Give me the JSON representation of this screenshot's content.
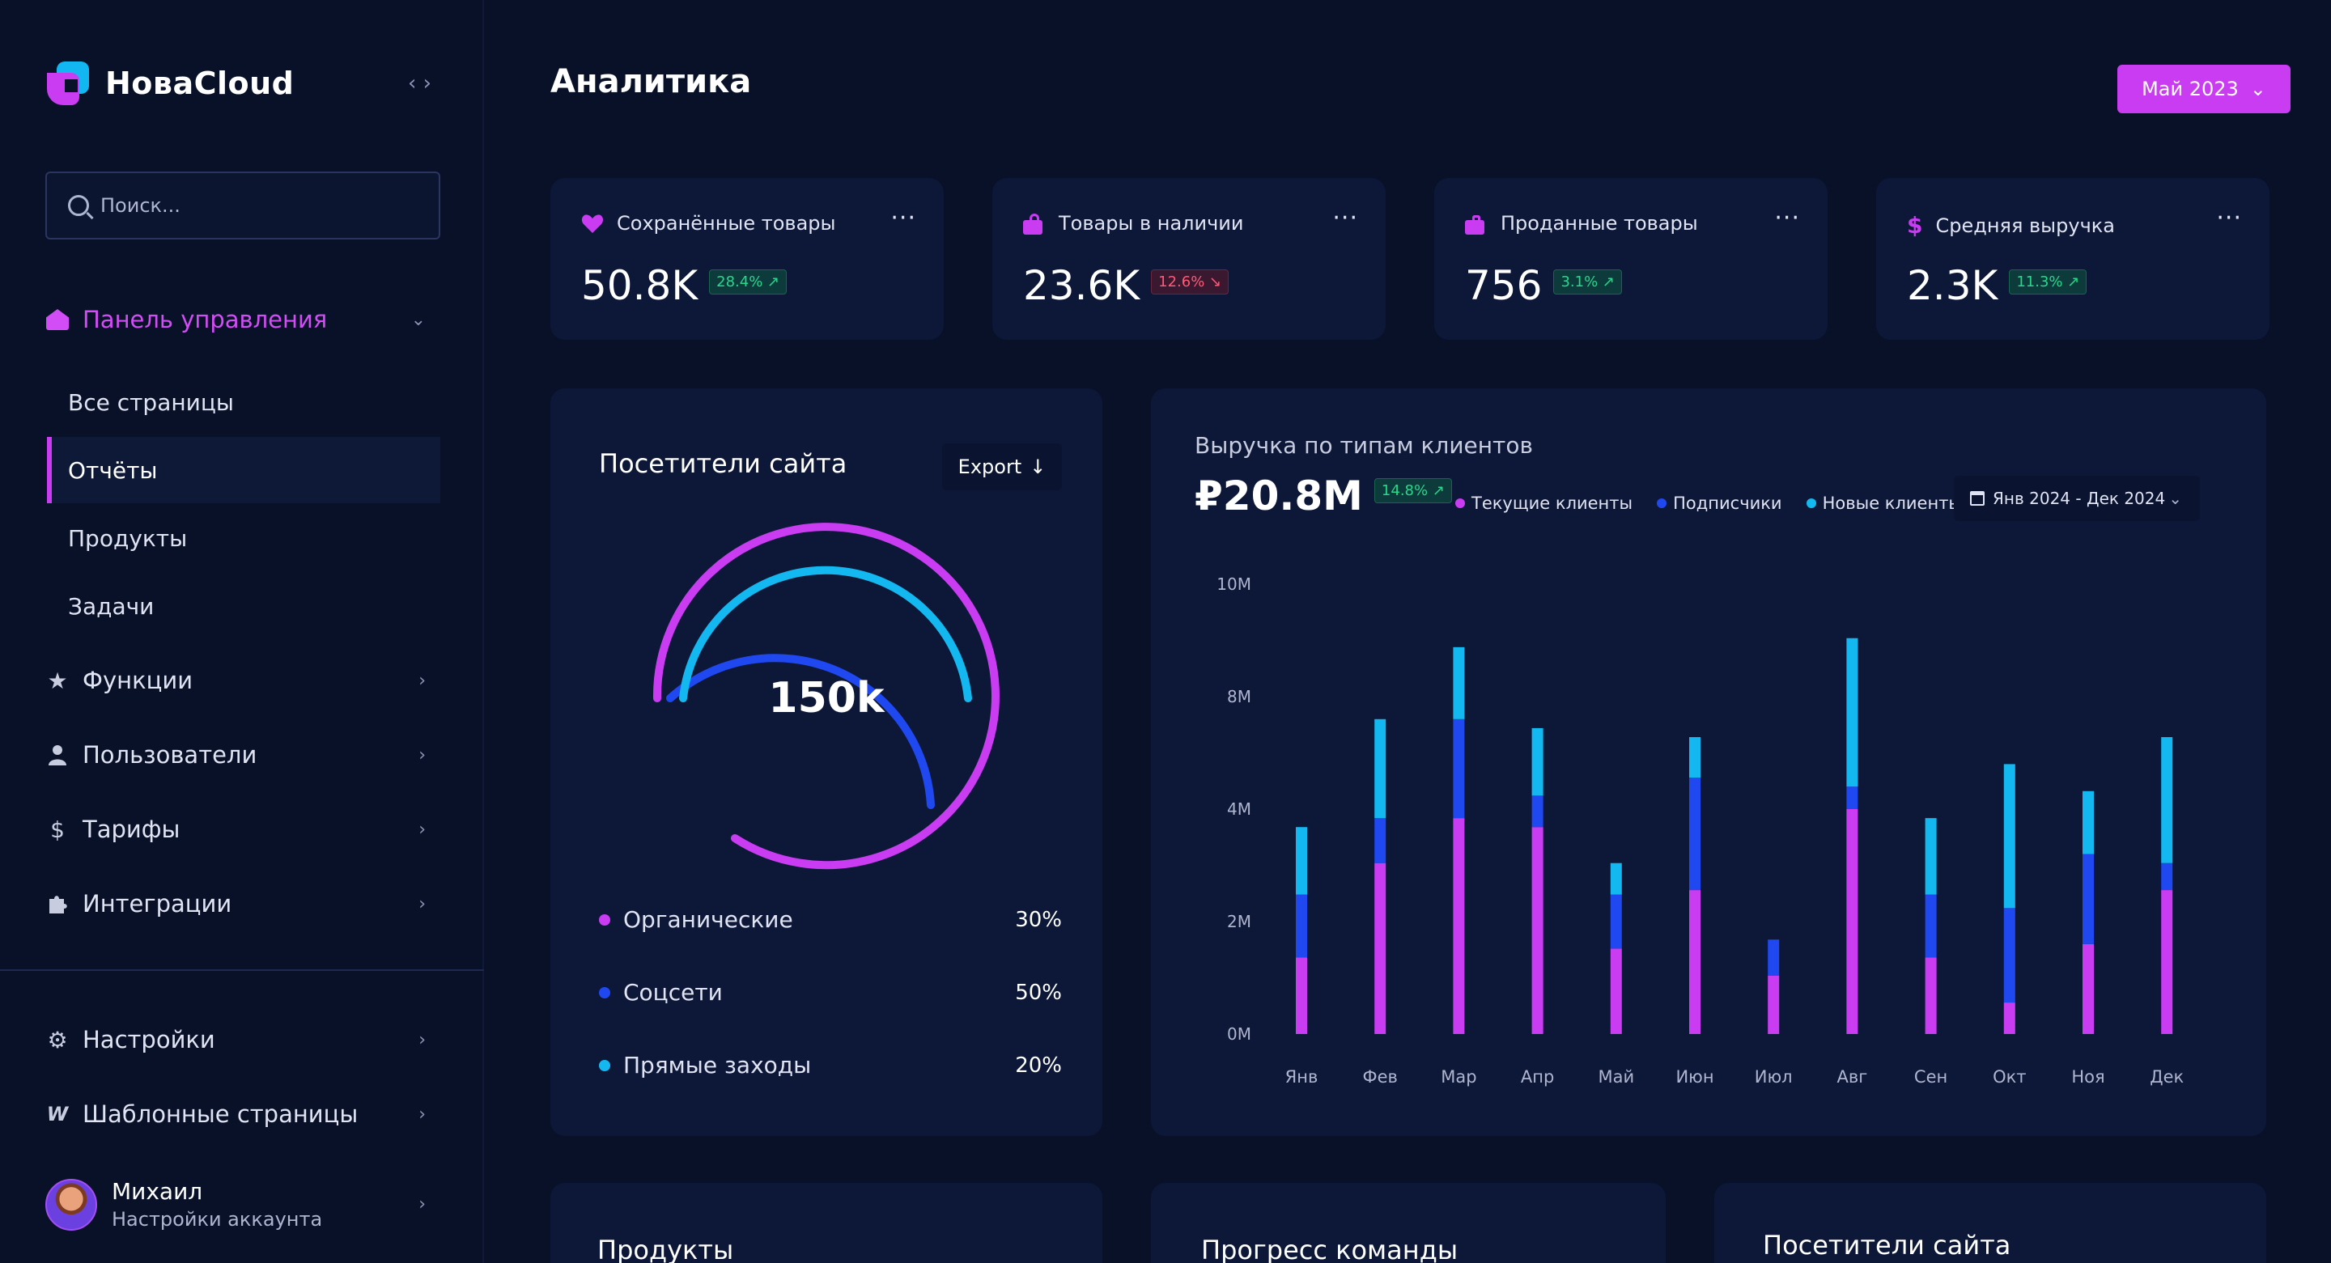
{
  "brand": {
    "name": "HовaCloud"
  },
  "sidebar": {
    "search_placeholder": "Поиск...",
    "dashboard_label": "Панель управления",
    "sub_items": [
      "Все страницы",
      "Отчёты",
      "Продукты",
      "Задачи"
    ],
    "items": [
      {
        "label": "Функции",
        "icon": "star-icon"
      },
      {
        "label": "Пользователи",
        "icon": "user-icon"
      },
      {
        "label": "Тарифы",
        "icon": "dollar-icon"
      },
      {
        "label": "Интеграции",
        "icon": "puzzle-icon"
      }
    ],
    "bottom_items": [
      {
        "label": "Настройки",
        "icon": "gear-icon"
      },
      {
        "label": "Шаблонные страницы",
        "icon": "template-icon"
      }
    ],
    "user": {
      "name": "Михаил",
      "subtitle": "Настройки аккаунта"
    }
  },
  "header": {
    "title": "Аналитика",
    "period": "Май 2023"
  },
  "kpis": [
    {
      "label": "Сохранённые товары",
      "value": "50.8K",
      "change": "28.4%",
      "direction": "up",
      "icon": "heart-icon"
    },
    {
      "label": "Товары в наличии",
      "value": "23.6K",
      "change": "12.6%",
      "direction": "down",
      "icon": "bag-icon"
    },
    {
      "label": "Проданные товары",
      "value": "756",
      "change": "3.1%",
      "direction": "up",
      "icon": "briefcase-icon"
    },
    {
      "label": "Средняя выручка",
      "value": "2.3K",
      "change": "11.3%",
      "direction": "up",
      "icon": "dollar-icon"
    }
  ],
  "visitors": {
    "title": "Посетители сайта",
    "export_label": "Export",
    "total": "150k",
    "sources": [
      {
        "label": "Органические",
        "pct": "30%",
        "color": "#c93cf2"
      },
      {
        "label": "Соцсети",
        "pct": "50%",
        "color": "#1f48f0"
      },
      {
        "label": "Прямые заходы",
        "pct": "20%",
        "color": "#14b8f0"
      }
    ]
  },
  "revenue": {
    "title": "Выручка по типам клиентов",
    "total": "₽20.8M",
    "change": "14.8%",
    "date_range": "Янв 2024 - Дек 2024"
  },
  "chart_data": {
    "type": "bar",
    "stacked": true,
    "categories": [
      "Янв",
      "Фев",
      "Мар",
      "Апр",
      "Май",
      "Июн",
      "Июл",
      "Авг",
      "Сен",
      "Окт",
      "Ноя",
      "Дек"
    ],
    "y_ticks": [
      "0M",
      "2M",
      "4M",
      "8M",
      "10M"
    ],
    "ylim": [
      0,
      10
    ],
    "series": [
      {
        "name": "Текущие клиенты",
        "color": "#c93cf2",
        "values": [
          1.7,
          3.8,
          4.8,
          4.6,
          1.9,
          3.2,
          1.3,
          5.0,
          1.7,
          0.7,
          2.0,
          3.2
        ]
      },
      {
        "name": "Подписчики",
        "color": "#1f48f0",
        "values": [
          1.4,
          1.0,
          2.2,
          0.7,
          1.2,
          2.5,
          0.8,
          0.5,
          1.4,
          2.1,
          2.0,
          0.6
        ]
      },
      {
        "name": "Новые клиенты",
        "color": "#14b8f0",
        "values": [
          1.5,
          2.2,
          1.6,
          1.5,
          0.7,
          0.9,
          0.0,
          3.3,
          1.7,
          3.2,
          1.4,
          2.8
        ]
      }
    ],
    "grid": false,
    "legend": "top"
  },
  "bottom_cards": [
    "Продукты",
    "Прогресс команды",
    "Посетители сайта"
  ],
  "colors": {
    "accent": "#c93cf2",
    "background": "#081128",
    "card": "#0d1838",
    "up": "#27d88a",
    "down": "#ff5a75"
  }
}
